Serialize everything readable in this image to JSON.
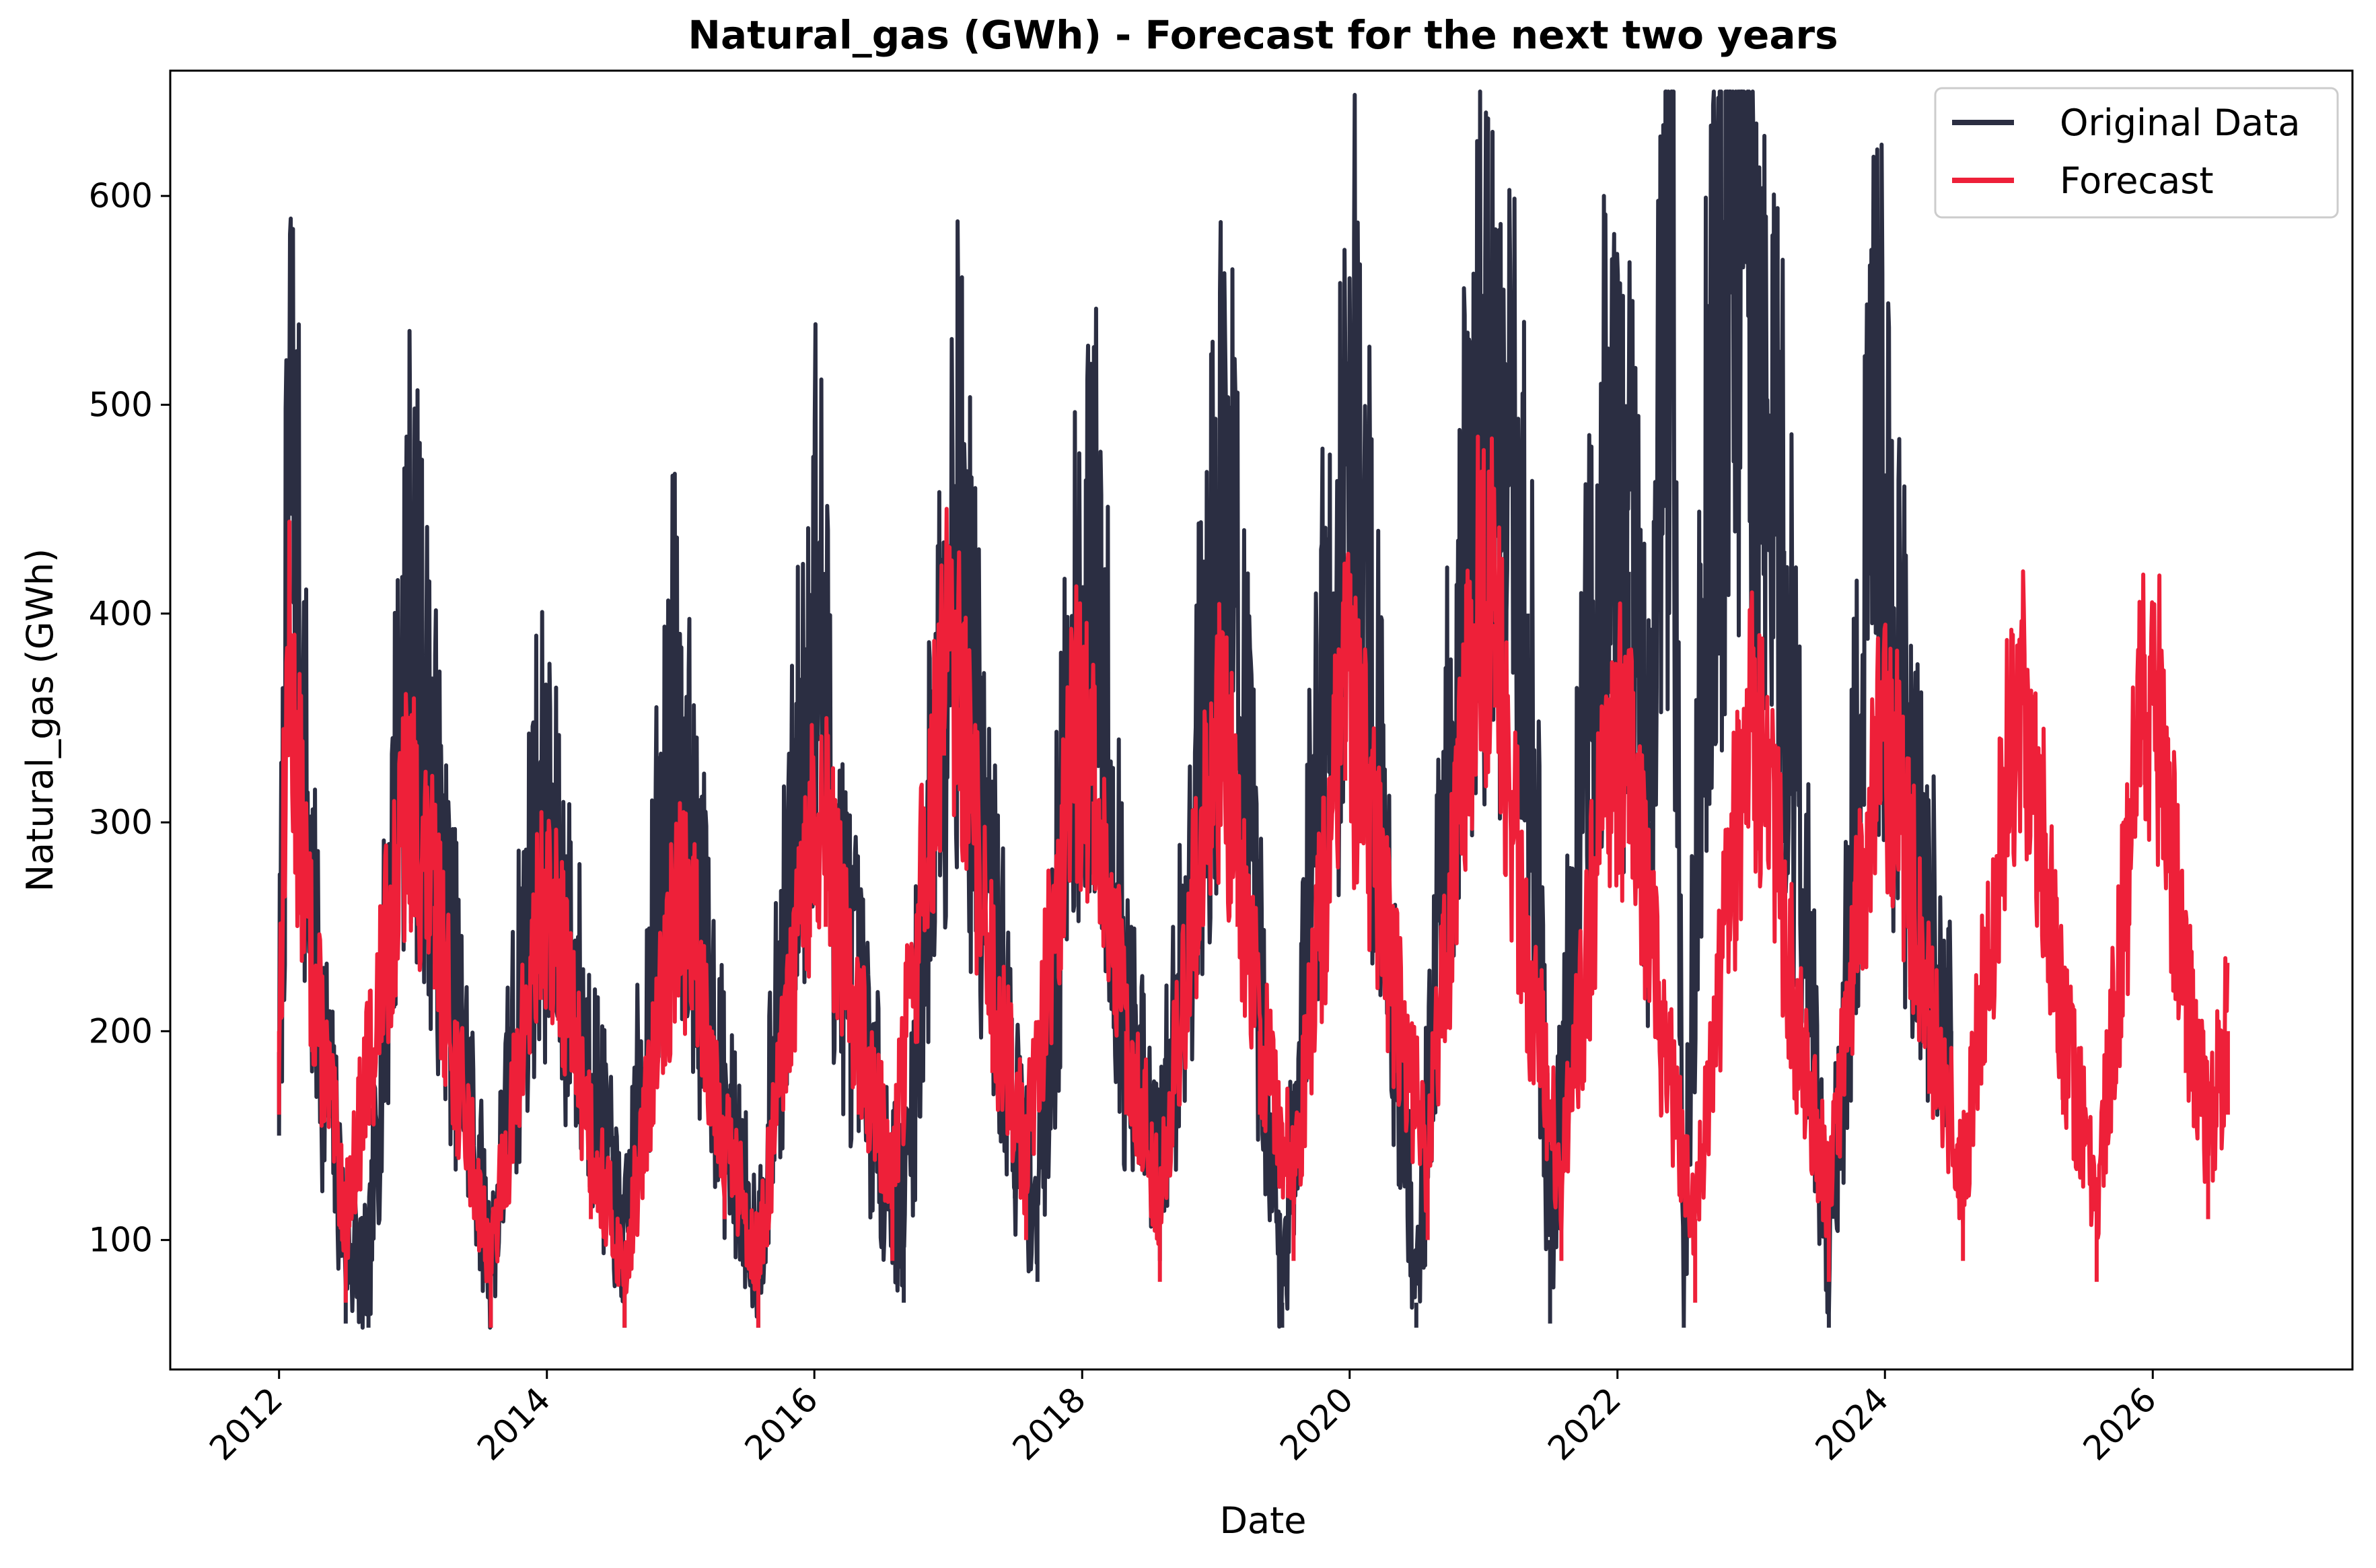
{
  "chart_data": {
    "type": "line",
    "title": "Natural_gas (GWh) - Forecast for the next two years",
    "xlabel": "Date",
    "ylabel": "Natural_gas (GWh)",
    "xlim": [
      "2011-03-10",
      "2027-06-30"
    ],
    "ylim": [
      38,
      660
    ],
    "x_ticks": [
      "2012",
      "2014",
      "2016",
      "2018",
      "2020",
      "2022",
      "2024",
      "2026"
    ],
    "y_ticks": [
      100,
      200,
      300,
      400,
      500,
      600
    ],
    "grid": false,
    "legend": {
      "position": "top-right",
      "entries": [
        "Original Data",
        "Forecast"
      ]
    },
    "series": [
      {
        "name": "Original Data",
        "color": "#2b2e42",
        "kind": "daily observed series, seasonal winter peaks",
        "x_range": [
          "2012-01-01",
          "2024-06-30"
        ],
        "points": [
          [
            "2012-01-01",
            190
          ],
          [
            "2012-02-01",
            490
          ],
          [
            "2012-04-01",
            240
          ],
          [
            "2012-07-01",
            100
          ],
          [
            "2012-09-01",
            82
          ],
          [
            "2012-12-15",
            407
          ],
          [
            "2013-02-01",
            345
          ],
          [
            "2013-04-01",
            250
          ],
          [
            "2013-08-01",
            88
          ],
          [
            "2013-12-10",
            302
          ],
          [
            "2014-02-01",
            260
          ],
          [
            "2014-05-01",
            180
          ],
          [
            "2014-08-01",
            95
          ],
          [
            "2014-12-15",
            353
          ],
          [
            "2015-02-01",
            280
          ],
          [
            "2015-05-01",
            160
          ],
          [
            "2015-08-01",
            95
          ],
          [
            "2016-01-10",
            416
          ],
          [
            "2016-03-01",
            270
          ],
          [
            "2016-07-01",
            150
          ],
          [
            "2016-09-01",
            110
          ],
          [
            "2017-01-15",
            462
          ],
          [
            "2017-04-01",
            300
          ],
          [
            "2017-07-01",
            160
          ],
          [
            "2017-09-01",
            120
          ],
          [
            "2017-12-20",
            400
          ],
          [
            "2018-02-15",
            398
          ],
          [
            "2018-05-01",
            200
          ],
          [
            "2018-08-01",
            130
          ],
          [
            "2019-02-01",
            467
          ],
          [
            "2019-04-01",
            300
          ],
          [
            "2019-07-01",
            70
          ],
          [
            "2019-10-01",
            320
          ],
          [
            "2020-01-15",
            498
          ],
          [
            "2020-04-01",
            300
          ],
          [
            "2020-07-01",
            70
          ],
          [
            "2020-10-01",
            340
          ],
          [
            "2021-01-01",
            496
          ],
          [
            "2021-03-01",
            460
          ],
          [
            "2021-05-01",
            400
          ],
          [
            "2021-07-01",
            100
          ],
          [
            "2021-12-01",
            480
          ],
          [
            "2022-02-01",
            420
          ],
          [
            "2022-04-01",
            300
          ],
          [
            "2022-05-01",
            555
          ],
          [
            "2022-06-01",
            558
          ],
          [
            "2022-07-01",
            80
          ],
          [
            "2022-09-01",
            457
          ],
          [
            "2022-12-10",
            631
          ],
          [
            "2023-02-01",
            473
          ],
          [
            "2023-04-01",
            430
          ],
          [
            "2023-08-01",
            80
          ],
          [
            "2023-12-10",
            482
          ],
          [
            "2024-02-01",
            377
          ],
          [
            "2024-04-01",
            280
          ],
          [
            "2024-06-30",
            200
          ]
        ]
      },
      {
        "name": "Forecast",
        "color": "#ee2039",
        "kind": "daily fitted and forecast series, seasonal winter peaks",
        "x_range": [
          "2012-01-01",
          "2026-07-25"
        ],
        "points": [
          [
            "2012-01-01",
            200
          ],
          [
            "2012-01-25",
            376
          ],
          [
            "2012-04-01",
            230
          ],
          [
            "2012-07-01",
            110
          ],
          [
            "2012-12-20",
            310
          ],
          [
            "2013-03-01",
            260
          ],
          [
            "2013-05-01",
            180
          ],
          [
            "2013-08-01",
            90
          ],
          [
            "2013-12-15",
            255
          ],
          [
            "2014-02-01",
            245
          ],
          [
            "2014-05-01",
            150
          ],
          [
            "2014-08-01",
            85
          ],
          [
            "2014-12-20",
            260
          ],
          [
            "2015-02-01",
            250
          ],
          [
            "2015-05-01",
            150
          ],
          [
            "2015-08-01",
            90
          ],
          [
            "2015-12-20",
            285
          ],
          [
            "2016-02-01",
            290
          ],
          [
            "2016-05-01",
            200
          ],
          [
            "2016-08-01",
            130
          ],
          [
            "2016-12-20",
            372
          ],
          [
            "2017-02-01",
            355
          ],
          [
            "2017-05-01",
            220
          ],
          [
            "2017-08-01",
            140
          ],
          [
            "2017-12-20",
            350
          ],
          [
            "2018-02-01",
            310
          ],
          [
            "2018-05-01",
            200
          ],
          [
            "2018-08-01",
            120
          ],
          [
            "2019-01-01",
            350
          ],
          [
            "2019-03-01",
            290
          ],
          [
            "2019-05-01",
            200
          ],
          [
            "2019-08-01",
            130
          ],
          [
            "2019-12-20",
            360
          ],
          [
            "2020-02-01",
            330
          ],
          [
            "2020-05-01",
            220
          ],
          [
            "2020-08-01",
            140
          ],
          [
            "2020-12-20",
            412
          ],
          [
            "2021-02-01",
            395
          ],
          [
            "2021-05-01",
            230
          ],
          [
            "2021-08-01",
            130
          ],
          [
            "2021-12-20",
            345
          ],
          [
            "2022-02-01",
            330
          ],
          [
            "2022-05-01",
            200
          ],
          [
            "2022-08-01",
            110
          ],
          [
            "2022-12-20",
            340
          ],
          [
            "2023-02-01",
            340
          ],
          [
            "2023-05-01",
            210
          ],
          [
            "2023-08-01",
            120
          ],
          [
            "2023-12-20",
            350
          ],
          [
            "2024-02-01",
            320
          ],
          [
            "2024-05-01",
            210
          ],
          [
            "2024-08-01",
            130
          ],
          [
            "2024-12-20",
            353
          ],
          [
            "2025-02-01",
            345
          ],
          [
            "2025-05-01",
            200
          ],
          [
            "2025-08-01",
            120
          ],
          [
            "2025-12-10",
            358
          ],
          [
            "2026-01-20",
            347
          ],
          [
            "2026-04-01",
            220
          ],
          [
            "2026-06-01",
            150
          ],
          [
            "2026-07-25",
            200
          ]
        ]
      }
    ]
  }
}
